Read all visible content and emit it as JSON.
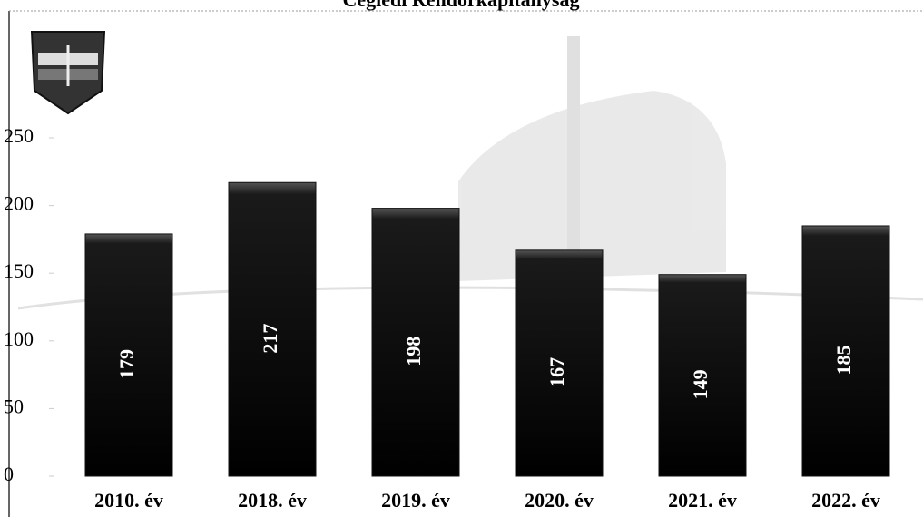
{
  "chart_data": {
    "type": "bar",
    "title": "Ceglédi Rendőrkapitányság",
    "categories": [
      "2010. év",
      "2018. év",
      "2019. év",
      "2020. év",
      "2021. év",
      "2022. év"
    ],
    "values": [
      179,
      217,
      198,
      167,
      149,
      185
    ],
    "color": "#111111",
    "ylim": [
      0,
      250
    ],
    "yticks": [
      0,
      50,
      100,
      150,
      200,
      250
    ],
    "grid": false
  }
}
